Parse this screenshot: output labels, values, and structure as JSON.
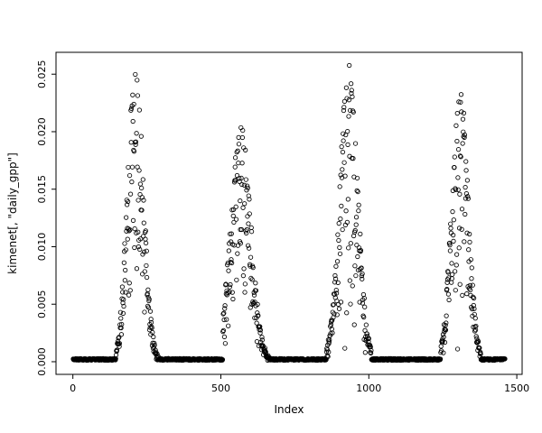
{
  "figure": {
    "background": "#ffffff",
    "foreground": "#000000"
  },
  "chart_data": {
    "type": "scatter",
    "title": "",
    "xlabel": "Index",
    "ylabel": "kimenet[, \"daily_gpp\"]",
    "x_ticks": [
      0,
      500,
      1000,
      1500
    ],
    "x_tick_labels": [
      "0",
      "500",
      "1000",
      "1500"
    ],
    "y_ticks": [
      0.0,
      0.005,
      0.01,
      0.015,
      0.02,
      0.025
    ],
    "y_tick_labels": [
      "0.000",
      "0.005",
      "0.010",
      "0.015",
      "0.020",
      "0.025"
    ],
    "xlim_usr": [
      -57,
      1518
    ],
    "ylim_usr": [
      -0.0011,
      0.0269
    ],
    "grid": false,
    "legend": null,
    "marker": {
      "shape": "open-circle",
      "radius": 2.2,
      "stroke_width": 0.85,
      "color": "#000000"
    },
    "series_description": "Daily GPP values vs. index: four seasonal bell-shaped peaks (maxima ~0.021-0.026) separated by long runs of zero values",
    "generator": {
      "seed": 20,
      "baseline_jitter": 8e-05,
      "noise_sigma": 0.33,
      "additive_jitter": 0.0003,
      "min_visible": 0.00035,
      "segments": [
        {
          "kind": "flat",
          "x0": 1,
          "x1": 145,
          "y": 0.0002
        },
        {
          "kind": "peak",
          "x0": 146,
          "x1": 298,
          "center": 212,
          "sigma": 27,
          "amp": 0.0262
        },
        {
          "kind": "flat",
          "x0": 299,
          "x1": 506,
          "y": 0.0002
        },
        {
          "kind": "peak",
          "x0": 507,
          "x1": 672,
          "center": 567,
          "sigma": 34,
          "amp": 0.0207
        },
        {
          "kind": "flat",
          "x0": 673,
          "x1": 856,
          "y": 0.0002
        },
        {
          "kind": "peak",
          "x0": 857,
          "x1": 1008,
          "center": 932,
          "sigma": 30,
          "amp": 0.0262
        },
        {
          "kind": "flat",
          "x0": 1009,
          "x1": 1242,
          "y": 0.0002
        },
        {
          "kind": "peak",
          "x0": 1243,
          "x1": 1378,
          "center": 1308,
          "sigma": 27,
          "amp": 0.0252
        },
        {
          "kind": "flat",
          "x0": 1379,
          "x1": 1460,
          "y": 0.0002
        }
      ]
    }
  }
}
